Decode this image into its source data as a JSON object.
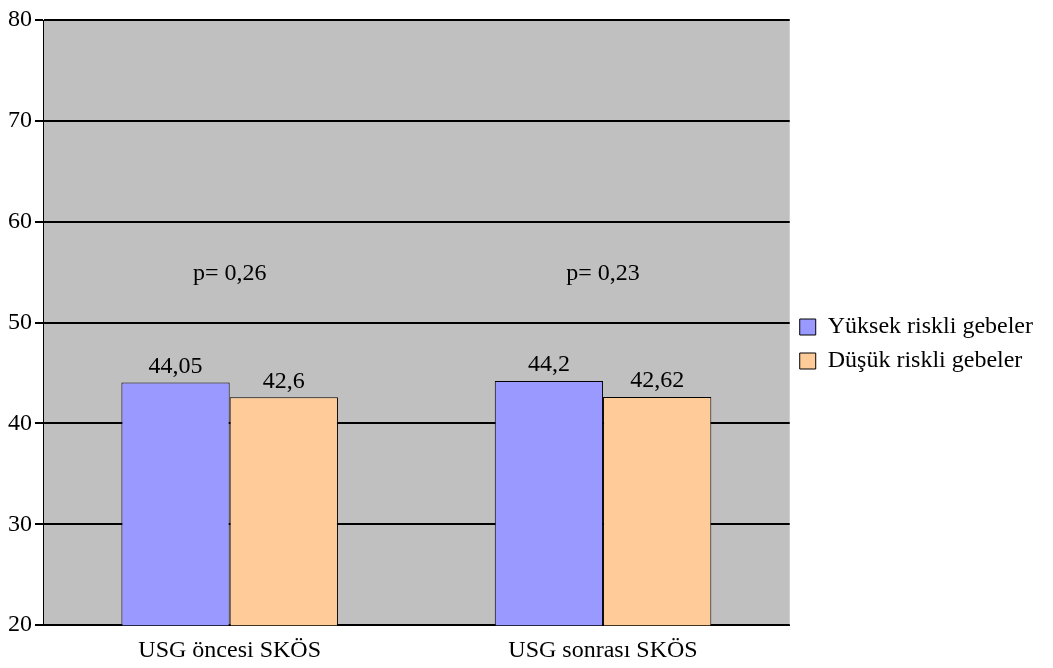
{
  "chart_data": {
    "type": "bar",
    "categories": [
      "USG öncesi SKÖS",
      "USG sonrası SKÖS"
    ],
    "series": [
      {
        "name": "Yüksek riskli gebeler",
        "color": "#9999ff",
        "values": [
          44.05,
          44.2
        ],
        "value_labels": [
          "44,05",
          "44,2"
        ]
      },
      {
        "name": "Düşük riskli gebeler",
        "color": "#ffcc99",
        "values": [
          42.6,
          42.62
        ],
        "value_labels": [
          "42,6",
          "42,62"
        ]
      }
    ],
    "ylim": [
      20,
      80
    ],
    "yticks": [
      20,
      30,
      40,
      50,
      60,
      70,
      80
    ],
    "grid": "y",
    "legend": "right",
    "annotations": [
      "p= 0,26",
      "p= 0,23"
    ]
  }
}
